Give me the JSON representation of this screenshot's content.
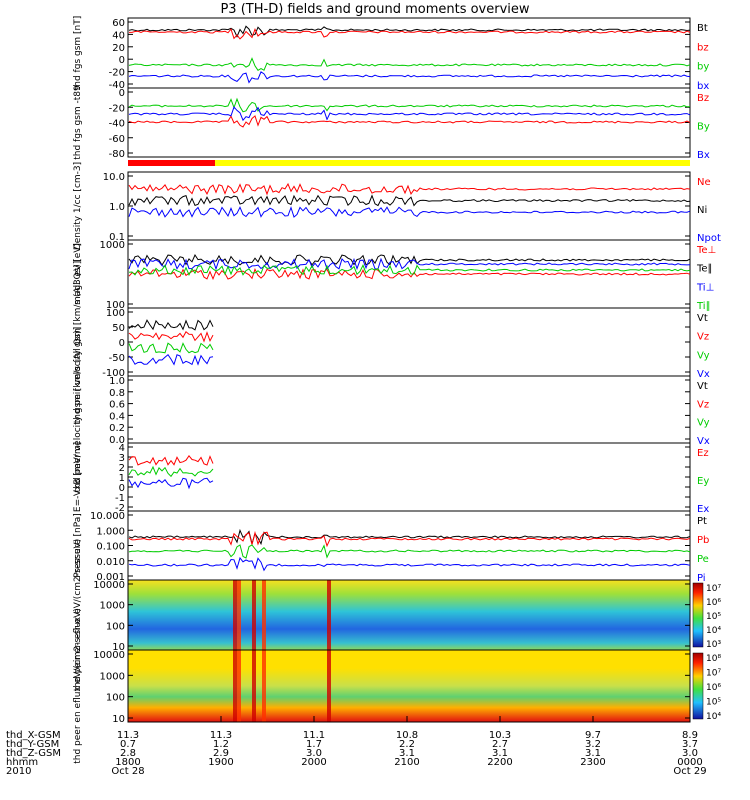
{
  "figure": {
    "title": "P3 (TH-D) fields and ground moments overview",
    "year": "2010",
    "start_date": "Oct 28",
    "end_date": "Oct 29"
  },
  "chart_data": [
    {
      "type": "line",
      "ylabel": "thd fgs gsm [nT]",
      "ylim": [
        -40,
        60
      ],
      "yticks": [
        "60",
        "40",
        "20",
        "0",
        "-20",
        "-40"
      ],
      "series": [
        {
          "name": "Bt",
          "color": "#000000"
        },
        {
          "name": "bz",
          "color": "#ff0000"
        },
        {
          "name": "by",
          "color": "#00cc00"
        },
        {
          "name": "bx",
          "color": "#0000ff"
        }
      ]
    },
    {
      "type": "line",
      "ylabel": "thd fgs gsm -t89",
      "ylim": [
        -90,
        10
      ],
      "yticks": [
        "0",
        "-20",
        "-40",
        "-60",
        "-80"
      ],
      "series": [
        {
          "name": "Bz",
          "color": "#ff0000"
        },
        {
          "name": "By",
          "color": "#00cc00"
        },
        {
          "name": "Bx",
          "color": "#0000ff"
        }
      ]
    },
    {
      "type": "line",
      "ylabel": "Density 1/cc [cm-3]",
      "scale": "log",
      "ylim": [
        0.1,
        10
      ],
      "yticks": [
        "10.0",
        "1.0",
        "0.1"
      ],
      "series": [
        {
          "name": "Ne",
          "color": "#ff0000"
        },
        {
          "name": "Ni",
          "color": "#000000"
        },
        {
          "name": "Npot",
          "color": "#0000ff"
        }
      ]
    },
    {
      "type": "line",
      "ylabel": "mag3 eV [eV]",
      "scale": "log",
      "ylim": [
        20,
        6000
      ],
      "yticks": [
        "1000",
        "100"
      ],
      "series": [
        {
          "name": "Te⊥",
          "color": "#ff0000"
        },
        {
          "name": "Te∥",
          "color": "#000000"
        },
        {
          "name": "Ti⊥",
          "color": "#0000ff"
        },
        {
          "name": "Ti∥",
          "color": "#00cc00"
        }
      ]
    },
    {
      "type": "line",
      "ylabel": "thd peir velocity gsm [km/s (All Qs)]",
      "ylim": [
        -100,
        100
      ],
      "yticks": [
        "100",
        "50",
        "0",
        "-50",
        "-100"
      ],
      "series": [
        {
          "name": "Vt",
          "color": "#000000"
        },
        {
          "name": "Vz",
          "color": "#ff0000"
        },
        {
          "name": "Vy",
          "color": "#00cc00"
        },
        {
          "name": "Vx",
          "color": "#0000ff"
        }
      ]
    },
    {
      "type": "line",
      "ylabel": "thd peer velocity gsm [km/s (All Qs)]",
      "ylim": [
        0,
        1
      ],
      "yticks": [
        "1.0",
        "0.8",
        "0.6",
        "0.4",
        "0.2",
        "0.0"
      ],
      "series": [
        {
          "name": "Vt",
          "color": "#000000"
        },
        {
          "name": "Vz",
          "color": "#ff0000"
        },
        {
          "name": "Vy",
          "color": "#00cc00"
        },
        {
          "name": "Vx",
          "color": "#0000ff"
        }
      ]
    },
    {
      "type": "line",
      "ylabel": "E=-VxB [mV/m]",
      "ylim": [
        -2,
        4
      ],
      "yticks": [
        "4",
        "3",
        "2",
        "1",
        "0",
        "-1",
        "-2"
      ],
      "series": [
        {
          "name": "Ez",
          "color": "#ff0000"
        },
        {
          "name": "Ey",
          "color": "#00cc00"
        },
        {
          "name": "Ex",
          "color": "#0000ff"
        }
      ]
    },
    {
      "type": "line",
      "ylabel": "Pressure [nPa]",
      "scale": "log",
      "ylim": [
        0.001,
        10
      ],
      "yticks": [
        "10.000",
        "1.000",
        "0.100",
        "0.010",
        "0.001"
      ],
      "series": [
        {
          "name": "Pt",
          "color": "#000000"
        },
        {
          "name": "Pb",
          "color": "#ff0000"
        },
        {
          "name": "Pe",
          "color": "#00cc00"
        },
        {
          "name": "Pi",
          "color": "#0000ff"
        }
      ]
    },
    {
      "type": "heatmap",
      "ylabel": "thd peir en eflux eV/(cm2-s-sr-eV)",
      "scale": "log",
      "ylim": [
        10,
        10000
      ],
      "yticks": [
        "10000",
        "1000",
        "100",
        "10"
      ],
      "colorbar_ticks": [
        "10⁷",
        "10⁶",
        "10⁵",
        "10⁴",
        "10³"
      ]
    },
    {
      "type": "heatmap",
      "ylabel": "thd peer en eflux eV/(cm2-s-sr-eV)",
      "scale": "log",
      "ylim": [
        10,
        10000
      ],
      "yticks": [
        "10000",
        "1000",
        "100",
        "10"
      ],
      "colorbar_ticks": [
        "10⁸",
        "10⁷",
        "10⁶",
        "10⁵",
        "10⁴"
      ]
    }
  ],
  "time_axis": {
    "rows": [
      {
        "label": "thd_X-GSM",
        "values": [
          "11.3",
          "11.3",
          "11.1",
          "10.8",
          "10.3",
          "9.7",
          "8.9"
        ]
      },
      {
        "label": "thd_Y-GSM",
        "values": [
          "0.7",
          "1.2",
          "1.7",
          "2.2",
          "2.7",
          "3.2",
          "3.7"
        ]
      },
      {
        "label": "thd_Z-GSM",
        "values": [
          "2.8",
          "2.9",
          "3.0",
          "3.1",
          "3.1",
          "3.1",
          "3.0"
        ]
      },
      {
        "label": "hhmm",
        "values": [
          "1800",
          "1900",
          "2000",
          "2100",
          "2200",
          "2300",
          "0000"
        ]
      }
    ]
  },
  "colors": {
    "red": "#ff0000",
    "green": "#00cc00",
    "blue": "#0000ff",
    "black": "#000000",
    "yellow": "#ffff00"
  }
}
